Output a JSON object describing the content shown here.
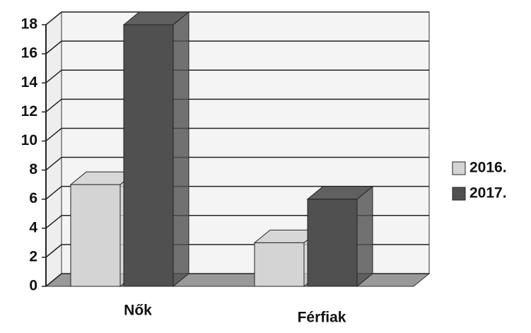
{
  "chart_data": {
    "type": "bar3d",
    "categories": [
      "Nők",
      "Férfiak"
    ],
    "series": [
      {
        "name": "2016.",
        "color": "#d4d4d4",
        "values": [
          7,
          3
        ]
      },
      {
        "name": "2017.",
        "color": "#505050",
        "values": [
          18,
          6
        ]
      }
    ],
    "ylim": [
      0,
      18
    ],
    "yticks": [
      0,
      2,
      4,
      6,
      8,
      10,
      12,
      14,
      16,
      18
    ],
    "grid": true,
    "legend": "right"
  }
}
